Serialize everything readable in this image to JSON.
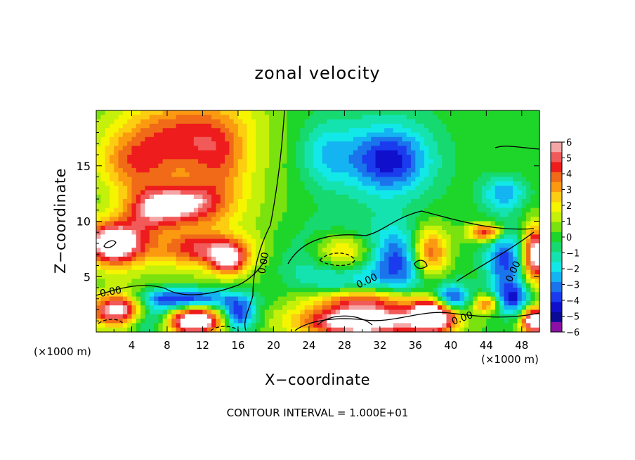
{
  "chart_data": {
    "type": "heatmap",
    "title": "zonal velocity",
    "xlabel": "X−coordinate",
    "ylabel": "Z−coordinate",
    "x_unit_left": "(×1000 m)",
    "x_unit_right": "(×1000 m)",
    "footer": "CONTOUR INTERVAL = 1.000E+01",
    "xlim": [
      0,
      50
    ],
    "ylim": [
      0,
      20
    ],
    "x_ticks": [
      "4",
      "8",
      "12",
      "16",
      "20",
      "24",
      "28",
      "32",
      "36",
      "40",
      "44",
      "48"
    ],
    "x_tick_values": [
      4,
      8,
      12,
      16,
      20,
      24,
      28,
      32,
      36,
      40,
      44,
      48
    ],
    "y_ticks": [
      "5",
      "10",
      "15"
    ],
    "y_tick_values": [
      5,
      10,
      15
    ],
    "colorbar": {
      "ticks": [
        "6",
        "5",
        "4",
        "3",
        "2",
        "1",
        "0",
        "−1",
        "−2",
        "−3",
        "−4",
        "−5",
        "−6"
      ],
      "range": [
        -6,
        6
      ],
      "colors": [
        "#f4a6a6",
        "#f25a5a",
        "#ee1c1c",
        "#f06a18",
        "#fb9a10",
        "#fccd10",
        "#f5f500",
        "#c4f00a",
        "#7ae20e",
        "#1ed62a",
        "#16d970",
        "#14e3b0",
        "#12e8e8",
        "#14b4f2",
        "#1a74ec",
        "#1a3cee",
        "#1010cc",
        "#0a0a94",
        "#8c10a6"
      ]
    },
    "contour_labels": [
      "0.00",
      "0.00",
      "0.00",
      "0.00",
      "0.00"
    ],
    "field_blobs": [
      {
        "x": 9,
        "z": 17.5,
        "v": 3,
        "rx": 7,
        "rz": 3
      },
      {
        "x": 4,
        "z": 15,
        "v": 2.5,
        "rx": 4,
        "rz": 2.5
      },
      {
        "x": 14,
        "z": 15,
        "v": 1.8,
        "rx": 3,
        "rz": 4
      },
      {
        "x": 10,
        "z": 11.5,
        "v": 4.5,
        "rx": 4,
        "rz": 1.8
      },
      {
        "x": 6,
        "z": 11,
        "v": 3.5,
        "rx": 3,
        "rz": 2
      },
      {
        "x": 2,
        "z": 8,
        "v": 7.5,
        "rx": 3.5,
        "rz": 2
      },
      {
        "x": 12,
        "z": 7.5,
        "v": 4,
        "rx": 5,
        "rz": 1.5
      },
      {
        "x": 15,
        "z": 6.5,
        "v": 5,
        "rx": 2,
        "rz": 1.3
      },
      {
        "x": 33,
        "z": 15.5,
        "v": -4.5,
        "rx": 4.5,
        "rz": 3
      },
      {
        "x": 26,
        "z": 16,
        "v": -2,
        "rx": 3,
        "rz": 3
      },
      {
        "x": 46,
        "z": 12.5,
        "v": -3,
        "rx": 2.5,
        "rz": 1.5
      },
      {
        "x": 28,
        "z": 7,
        "v": 8,
        "rx": 4,
        "rz": 2
      },
      {
        "x": 28,
        "z": 6.5,
        "v": -6,
        "rx": 5.5,
        "rz": 2.8
      },
      {
        "x": 37.5,
        "z": 7,
        "v": 8,
        "rx": 2.5,
        "rz": 2.5
      },
      {
        "x": 36,
        "z": 6.5,
        "v": -5,
        "rx": 4,
        "rz": 3
      },
      {
        "x": 46,
        "z": 6.5,
        "v": -4,
        "rx": 2,
        "rz": 3
      },
      {
        "x": 44,
        "z": 9,
        "v": 5,
        "rx": 2,
        "rz": 0.8
      },
      {
        "x": 49.5,
        "z": 7,
        "v": 7,
        "rx": 1.2,
        "rz": 2.5
      },
      {
        "x": 3,
        "z": 2,
        "v": 8,
        "rx": 3.5,
        "rz": 1.5
      },
      {
        "x": 6,
        "z": 1.5,
        "v": -5,
        "rx": 3,
        "rz": 1.5
      },
      {
        "x": 11,
        "z": 1,
        "v": 8,
        "rx": 3.5,
        "rz": 1.3
      },
      {
        "x": 10,
        "z": 3,
        "v": -5,
        "rx": 6,
        "rz": 1
      },
      {
        "x": 16,
        "z": 1.5,
        "v": -5,
        "rx": 2,
        "rz": 1.5
      },
      {
        "x": 30,
        "z": 1,
        "v": 8,
        "rx": 7,
        "rz": 1.5
      },
      {
        "x": 30,
        "z": 3,
        "v": 4,
        "rx": 6,
        "rz": 1
      },
      {
        "x": 38,
        "z": 1.5,
        "v": 8,
        "rx": 2.5,
        "rz": 1.5
      },
      {
        "x": 40,
        "z": 3,
        "v": -5,
        "rx": 2,
        "rz": 1.2
      },
      {
        "x": 44,
        "z": 2.5,
        "v": 4,
        "rx": 1.5,
        "rz": 0.8
      },
      {
        "x": 47,
        "z": 3,
        "v": -4,
        "rx": 2,
        "rz": 1.5
      },
      {
        "x": 49.5,
        "z": 1,
        "v": 8,
        "rx": 1.5,
        "rz": 1.2
      }
    ]
  }
}
